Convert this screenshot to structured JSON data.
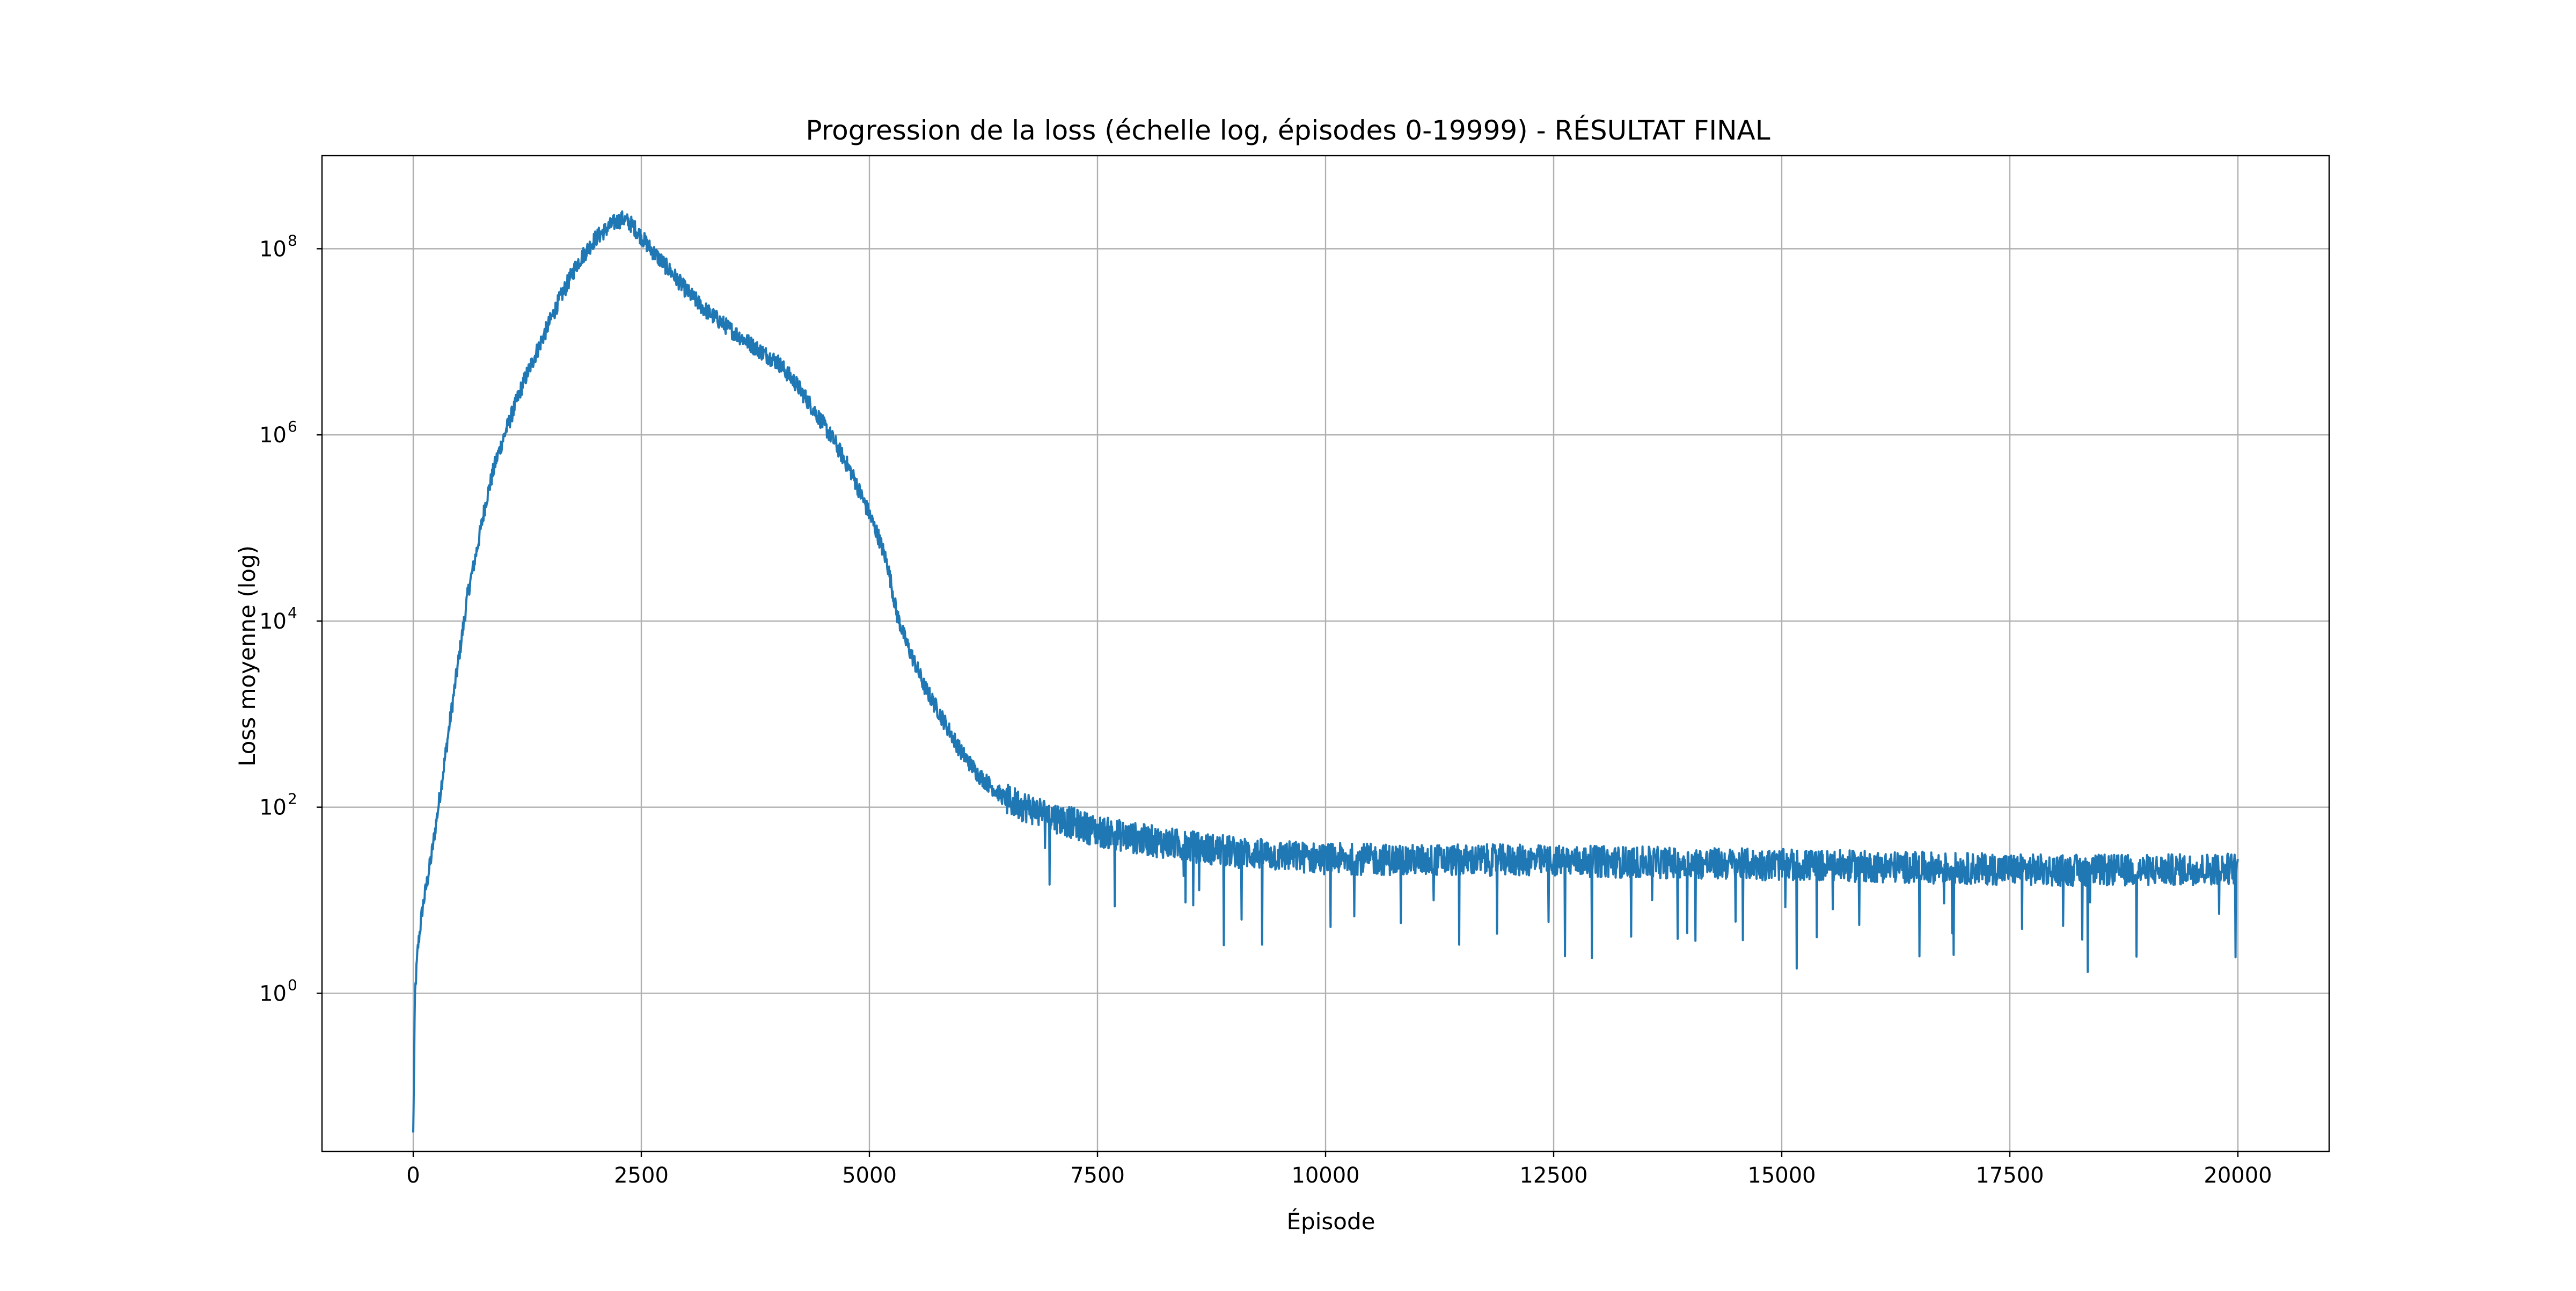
{
  "chart_data": {
    "type": "line",
    "title": "Progression de la loss (échelle log, épisodes 0-19999) - RÉSULTAT FINAL",
    "xlabel": "Épisode",
    "ylabel": "Loss moyenne (log)",
    "xlim": [
      -1000,
      21000
    ],
    "ylim": [
      0.02,
      1000000000
    ],
    "yscale": "log",
    "grid": true,
    "x_ticks": [
      0,
      2500,
      5000,
      7500,
      10000,
      12500,
      15000,
      17500,
      20000
    ],
    "y_ticks": [
      {
        "value": 1,
        "base": "10",
        "exp": "0"
      },
      {
        "value": 100,
        "base": "10",
        "exp": "2"
      },
      {
        "value": 10000,
        "base": "10",
        "exp": "4"
      },
      {
        "value": 1000000,
        "base": "10",
        "exp": "6"
      },
      {
        "value": 100000000,
        "base": "10",
        "exp": "8"
      }
    ],
    "line_color": "#1f77b4",
    "series": [
      {
        "x": [
          0,
          20,
          50,
          100,
          200,
          300,
          400,
          500,
          600,
          700,
          800,
          900,
          1000,
          1200,
          1400,
          1600,
          1800,
          2000,
          2200,
          2300,
          2400,
          2600,
          2800,
          3000,
          3200,
          3500,
          3800,
          4000,
          4200,
          4400,
          4600,
          4800,
          5000,
          5100,
          5200,
          5300,
          5400,
          5500,
          5600,
          5800,
          6000,
          6200,
          6500,
          7000,
          7500,
          8000,
          8500,
          9000,
          9500,
          10000,
          11000,
          12000,
          13000,
          14000,
          15000,
          16000,
          17000,
          18000,
          19000,
          19999
        ],
        "values": [
          0.03,
          1.0,
          3,
          8,
          30,
          150,
          800,
          4000,
          20000,
          60000,
          200000,
          500000,
          1000000,
          3500000,
          10000000,
          28000000,
          70000000,
          130000000,
          190000000,
          210000000,
          180000000,
          100000000,
          60000000,
          35000000,
          22000000,
          13000000,
          8000000,
          6000000,
          3500000,
          1800000,
          900000,
          400000,
          140000,
          80000,
          40000,
          12000,
          6000,
          3500,
          2000,
          900,
          400,
          220,
          120,
          80,
          55,
          45,
          38,
          33,
          30,
          28,
          27,
          27,
          26,
          25,
          24,
          23,
          22,
          21,
          21,
          22
        ]
      }
    ]
  }
}
